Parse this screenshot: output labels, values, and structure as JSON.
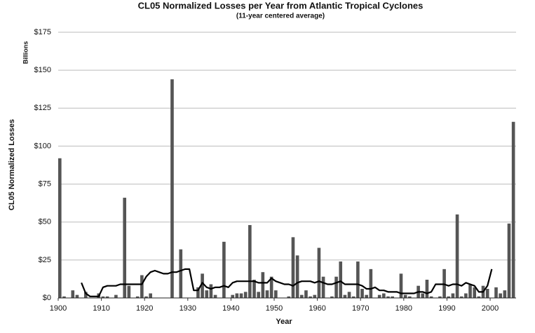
{
  "chart_data": {
    "type": "bar",
    "title": "CL05 Normalized Losses per Year from Atlantic Tropical Cyclones",
    "subtitle": "(11-year centered average)",
    "y_unit": "Billions",
    "y_label": "CL05 Normalized Losses",
    "x_label": "Year",
    "x": [
      1900,
      1901,
      1902,
      1903,
      1904,
      1905,
      1906,
      1907,
      1908,
      1909,
      1910,
      1911,
      1912,
      1913,
      1914,
      1915,
      1916,
      1917,
      1918,
      1919,
      1920,
      1921,
      1922,
      1923,
      1924,
      1925,
      1926,
      1927,
      1928,
      1929,
      1930,
      1931,
      1932,
      1933,
      1934,
      1935,
      1936,
      1937,
      1938,
      1939,
      1940,
      1941,
      1942,
      1943,
      1944,
      1945,
      1946,
      1947,
      1948,
      1949,
      1950,
      1951,
      1952,
      1953,
      1954,
      1955,
      1956,
      1957,
      1958,
      1959,
      1960,
      1961,
      1962,
      1963,
      1964,
      1965,
      1966,
      1967,
      1968,
      1969,
      1970,
      1971,
      1972,
      1973,
      1974,
      1975,
      1976,
      1977,
      1978,
      1979,
      1980,
      1981,
      1982,
      1983,
      1984,
      1985,
      1986,
      1987,
      1988,
      1989,
      1990,
      1991,
      1992,
      1993,
      1994,
      1995,
      1996,
      1997,
      1998,
      1999,
      2000,
      2001,
      2002,
      2003,
      2004,
      2005
    ],
    "series": [
      {
        "type": "bar",
        "color": "#555555",
        "values": [
          92,
          1,
          0,
          5,
          2,
          0,
          4,
          0,
          0,
          3,
          1,
          1,
          0,
          2,
          0,
          66,
          8,
          0,
          1,
          15,
          1,
          3,
          0,
          0,
          0,
          0,
          144,
          0,
          32,
          0,
          0,
          0,
          7,
          16,
          5,
          9,
          2,
          0,
          37,
          0,
          2,
          3,
          3,
          4,
          48,
          12,
          4,
          17,
          5,
          14,
          5,
          0,
          0,
          1,
          40,
          28,
          2,
          5,
          1,
          2,
          33,
          14,
          0,
          1,
          14,
          24,
          2,
          4,
          1,
          24,
          6,
          2,
          19,
          0,
          2,
          3,
          1,
          1,
          0,
          16,
          2,
          1,
          0,
          8,
          3,
          12,
          1,
          0,
          1,
          19,
          1,
          3,
          55,
          1,
          3,
          9,
          7,
          1,
          8,
          6,
          0,
          7,
          3,
          5,
          49,
          116
        ]
      },
      {
        "type": "line",
        "color": "#000000",
        "values": [
          null,
          null,
          null,
          null,
          null,
          10,
          3,
          1,
          1,
          1,
          7,
          8,
          8,
          8,
          9,
          9,
          9,
          9,
          9,
          9,
          14,
          17,
          18,
          17,
          16,
          16,
          17,
          17,
          18,
          19,
          19,
          5,
          5,
          10,
          7,
          6,
          7,
          7,
          8,
          7,
          10,
          11,
          11,
          11,
          11,
          11,
          10,
          10,
          10,
          13,
          11,
          10,
          9,
          9,
          8,
          10,
          11,
          11,
          11,
          10,
          11,
          10,
          9,
          9,
          10,
          11,
          9,
          9,
          9,
          9,
          8,
          6,
          6,
          7,
          5,
          5,
          4,
          4,
          4,
          3,
          3,
          3,
          3,
          4,
          4,
          3,
          4,
          9,
          9,
          9,
          8,
          9,
          9,
          8,
          10,
          9,
          8,
          4,
          4,
          8,
          19,
          null,
          null,
          null,
          null,
          null
        ]
      }
    ],
    "xlim": [
      1900,
      2006
    ],
    "xticks": [
      1900,
      1910,
      1920,
      1930,
      1940,
      1950,
      1960,
      1970,
      1980,
      1990,
      2000
    ],
    "ylim": [
      0,
      175
    ],
    "yticks": [
      {
        "value": 0,
        "label": "$0"
      },
      {
        "value": 25,
        "label": "$25"
      },
      {
        "value": 50,
        "label": "$50"
      },
      {
        "value": 75,
        "label": "$75"
      },
      {
        "value": 100,
        "label": "$100"
      },
      {
        "value": 125,
        "label": "$125"
      },
      {
        "value": 150,
        "label": "$150"
      },
      {
        "value": 175,
        "label": "$175"
      }
    ],
    "grid": true
  }
}
